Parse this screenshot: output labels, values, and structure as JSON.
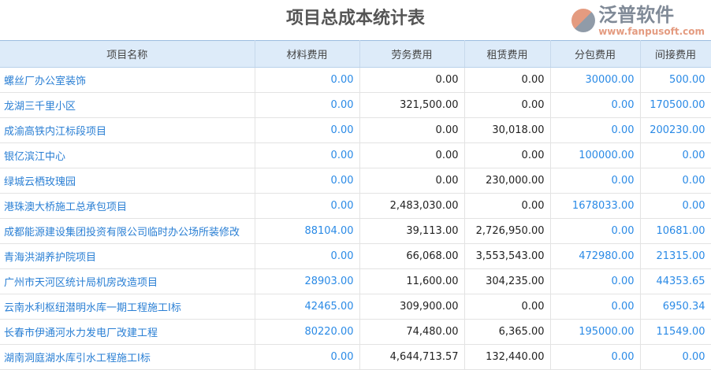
{
  "title": "项目总成本统计表",
  "columns": [
    "项目名称",
    "材料费用",
    "劳务费用",
    "租赁费用",
    "分包费用",
    "间接费用"
  ],
  "rows": [
    [
      "螺丝厂办公室装饰",
      "0.00",
      "0.00",
      "0.00",
      "30000.00",
      "500.00"
    ],
    [
      "龙湖三千里小区",
      "0.00",
      "321,500.00",
      "0.00",
      "0.00",
      "170500.00"
    ],
    [
      "成渝高铁内江标段项目",
      "0.00",
      "0.00",
      "30,018.00",
      "0.00",
      "200230.00"
    ],
    [
      "银亿滨江中心",
      "0.00",
      "0.00",
      "0.00",
      "100000.00",
      "0.00"
    ],
    [
      "绿城云栖玫瑰园",
      "0.00",
      "0.00",
      "230,000.00",
      "0.00",
      "0.00"
    ],
    [
      "港珠澳大桥施工总承包项目",
      "0.00",
      "2,483,030.00",
      "0.00",
      "1678033.00",
      "0.00"
    ],
    [
      "成都能源建设集团投资有限公司临时办公场所装修改",
      "88104.00",
      "39,113.00",
      "2,726,950.00",
      "0.00",
      "10681.00"
    ],
    [
      "青海洪湖养护院项目",
      "0.00",
      "66,068.00",
      "3,553,543.00",
      "472980.00",
      "21315.00"
    ],
    [
      "广州市天河区统计局机房改造项目",
      "28903.00",
      "11,600.00",
      "304,235.00",
      "0.00",
      "44353.65"
    ],
    [
      "云南水利枢纽潜明水库一期工程施工I标",
      "42465.00",
      "309,900.00",
      "0.00",
      "0.00",
      "6950.34"
    ],
    [
      "长春市伊通河水力发电厂改建工程",
      "80220.00",
      "74,480.00",
      "6,365.00",
      "195000.00",
      "11549.00"
    ],
    [
      "湖南洞庭湖水库引水工程施工I标",
      "0.00",
      "4,644,713.57",
      "132,440.00",
      "0.00",
      "0.00"
    ]
  ],
  "watermark": {
    "name": "泛普软件",
    "url": "www.fanpusoft.com"
  }
}
